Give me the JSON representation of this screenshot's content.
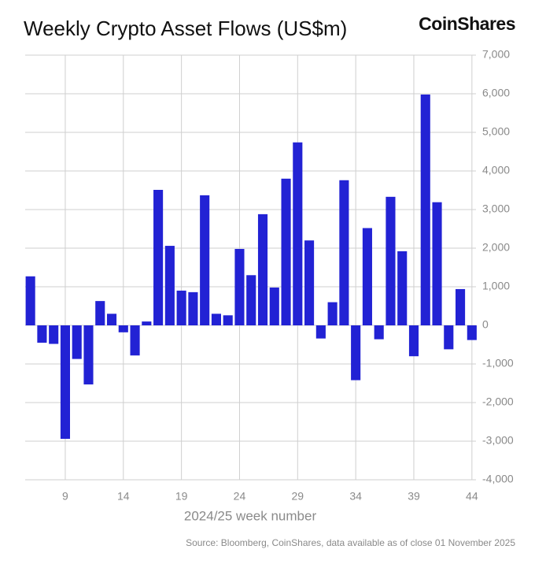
{
  "chart_data": {
    "type": "bar",
    "title": "Weekly Crypto Asset Flows (US$m)",
    "logo": "CoinShares",
    "x_label": "2024/25 week number",
    "source": "Source: Bloomberg, CoinShares, data available as of close 01 November 2025",
    "x": [
      6,
      7,
      8,
      9,
      10,
      11,
      12,
      13,
      14,
      15,
      16,
      17,
      18,
      19,
      20,
      21,
      22,
      23,
      24,
      25,
      26,
      27,
      28,
      29,
      30,
      31,
      32,
      33,
      34,
      35,
      36,
      37,
      38,
      39,
      40,
      41,
      42,
      43,
      44
    ],
    "values": [
      1270,
      -450,
      -480,
      -2940,
      -870,
      -1530,
      630,
      300,
      -180,
      -780,
      100,
      3510,
      2060,
      900,
      860,
      3370,
      300,
      260,
      1980,
      1300,
      2880,
      980,
      3800,
      4740,
      2200,
      -340,
      600,
      3760,
      -1420,
      2520,
      -360,
      3330,
      1920,
      -800,
      5980,
      3190,
      -620,
      940,
      -380
    ],
    "color": "#2222d4",
    "xlim": [
      5.55,
      44.35
    ],
    "xticks": [
      9,
      14,
      19,
      24,
      29,
      34,
      39,
      44
    ],
    "ylim": [
      -4000,
      7000
    ],
    "yticks": [
      {
        "value": 7000,
        "label": "7,000"
      },
      {
        "value": 6000,
        "label": "6,000"
      },
      {
        "value": 5000,
        "label": "5,000"
      },
      {
        "value": 4000,
        "label": "4,000"
      },
      {
        "value": 3000,
        "label": "3,000"
      },
      {
        "value": 2000,
        "label": "2,000"
      },
      {
        "value": 1000,
        "label": "1,000"
      },
      0,
      {
        "value": -1000,
        "label": "-1,000"
      },
      {
        "value": -2000,
        "label": "-2,000"
      },
      {
        "value": -3000,
        "label": "-3,000"
      },
      {
        "value": -4000,
        "label": "-4,000"
      }
    ],
    "grid": true
  }
}
